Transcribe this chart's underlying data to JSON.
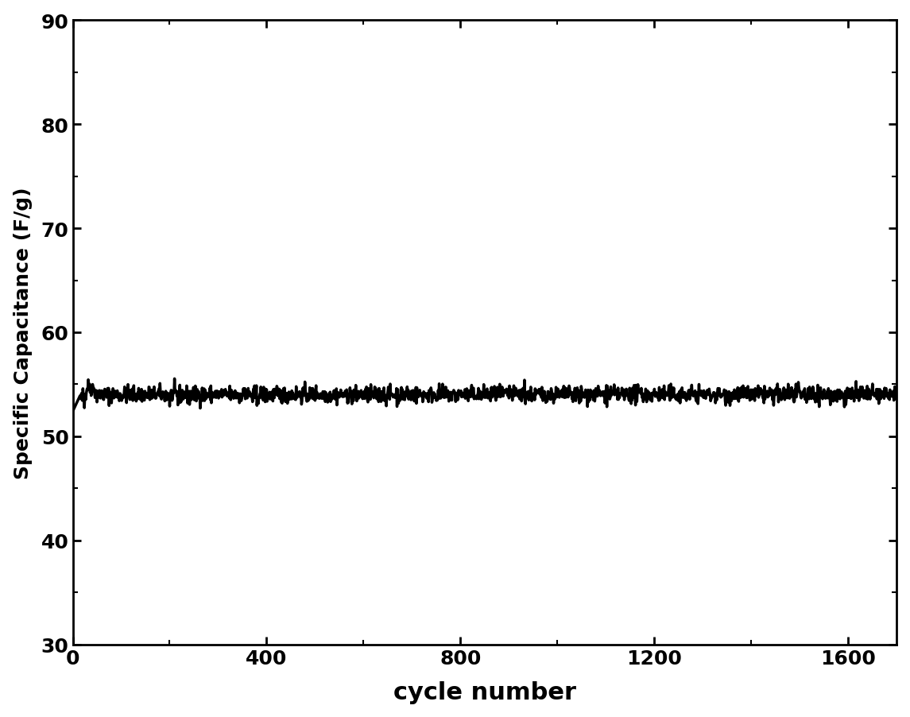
{
  "title": "",
  "xlabel": "cycle number",
  "ylabel": "Specific Capacitance (F/g)",
  "xlim": [
    0,
    1700
  ],
  "ylim": [
    30,
    90
  ],
  "yticks": [
    30,
    40,
    50,
    60,
    70,
    80,
    90
  ],
  "xticks": [
    0,
    400,
    800,
    1200,
    1600
  ],
  "line_color": "#000000",
  "background_color": "#ffffff",
  "mean_capacitance": 54.0,
  "initial_dip": 52.5,
  "total_cycles": 1700,
  "num_points": 1700,
  "xlabel_fontsize": 22,
  "ylabel_fontsize": 18,
  "tick_fontsize": 18,
  "spine_linewidth": 2.0,
  "line_linewidth": 2.5
}
